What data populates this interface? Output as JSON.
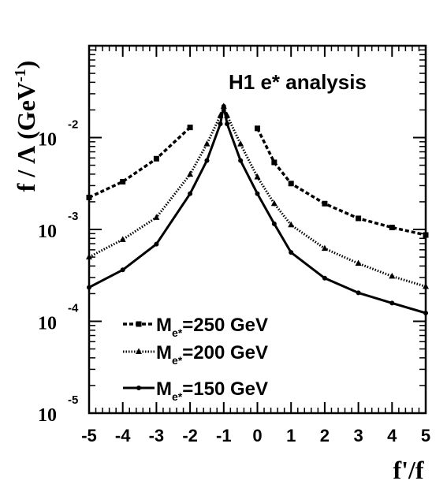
{
  "chart_data": {
    "type": "line",
    "title": "H1 e* analysis",
    "xlabel": "f'/f",
    "ylabel": "f / Λ (GeV-1)",
    "xlim": [
      -5,
      5
    ],
    "ylim": [
      1e-05,
      0.1
    ],
    "yscale": "log",
    "x_ticks": [
      "-5",
      "-4",
      "-3",
      "-2",
      "-1",
      "0",
      "1",
      "2",
      "3",
      "4",
      "5"
    ],
    "y_ticks": [
      {
        "base": "10",
        "exp": "-5"
      },
      {
        "base": "10",
        "exp": "-4"
      },
      {
        "base": "10",
        "exp": "-3"
      },
      {
        "base": "10",
        "exp": "-2"
      }
    ],
    "grid": false,
    "legend_position": "bottom-left",
    "series": [
      {
        "name": "M",
        "name_sub": "e*",
        "name_rest": "=250 GeV",
        "style": "dashed",
        "marker": "square",
        "segments": [
          {
            "x": [
              -5,
              -4,
              -3,
              -2
            ],
            "y": [
              0.00223,
              0.00331,
              0.00589,
              0.0129
            ]
          },
          {
            "x": [
              0,
              0.5,
              1,
              2,
              3,
              4,
              5
            ],
            "y": [
              0.0126,
              0.00537,
              0.00316,
              0.00191,
              0.00132,
              0.00105,
              0.00087
            ]
          }
        ]
      },
      {
        "name": "M",
        "name_sub": "e*",
        "name_rest": "=200 GeV",
        "style": "dotted",
        "marker": "triangle",
        "segments": [
          {
            "x": [
              -5,
              -4,
              -3,
              -2,
              -1.5,
              -1.1,
              -1,
              -0.9,
              -0.5,
              0,
              0.5,
              1,
              2,
              3,
              4,
              5
            ],
            "y": [
              0.000501,
              0.000776,
              0.00135,
              0.00398,
              0.00851,
              0.0174,
              0.0219,
              0.0174,
              0.00851,
              0.00372,
              0.00191,
              0.00112,
              0.00062,
              0.000427,
              0.000309,
              0.000239
            ]
          }
        ]
      },
      {
        "name": "M",
        "name_sub": "e*",
        "name_rest": "=150 GeV",
        "style": "solid",
        "marker": "circle",
        "segments": [
          {
            "x": [
              -5,
              -4,
              -3,
              -2,
              -1.5,
              -1.1,
              -1,
              -0.9,
              -0.5,
              0,
              0.5,
              1,
              2,
              3,
              4,
              5
            ],
            "y": [
              0.000234,
              0.000363,
              0.000692,
              0.00245,
              0.00562,
              0.0141,
              0.0219,
              0.0141,
              0.00562,
              0.00245,
              0.00115,
              0.000562,
              0.000295,
              0.000204,
              0.000158,
              0.000123
            ]
          }
        ]
      }
    ]
  }
}
